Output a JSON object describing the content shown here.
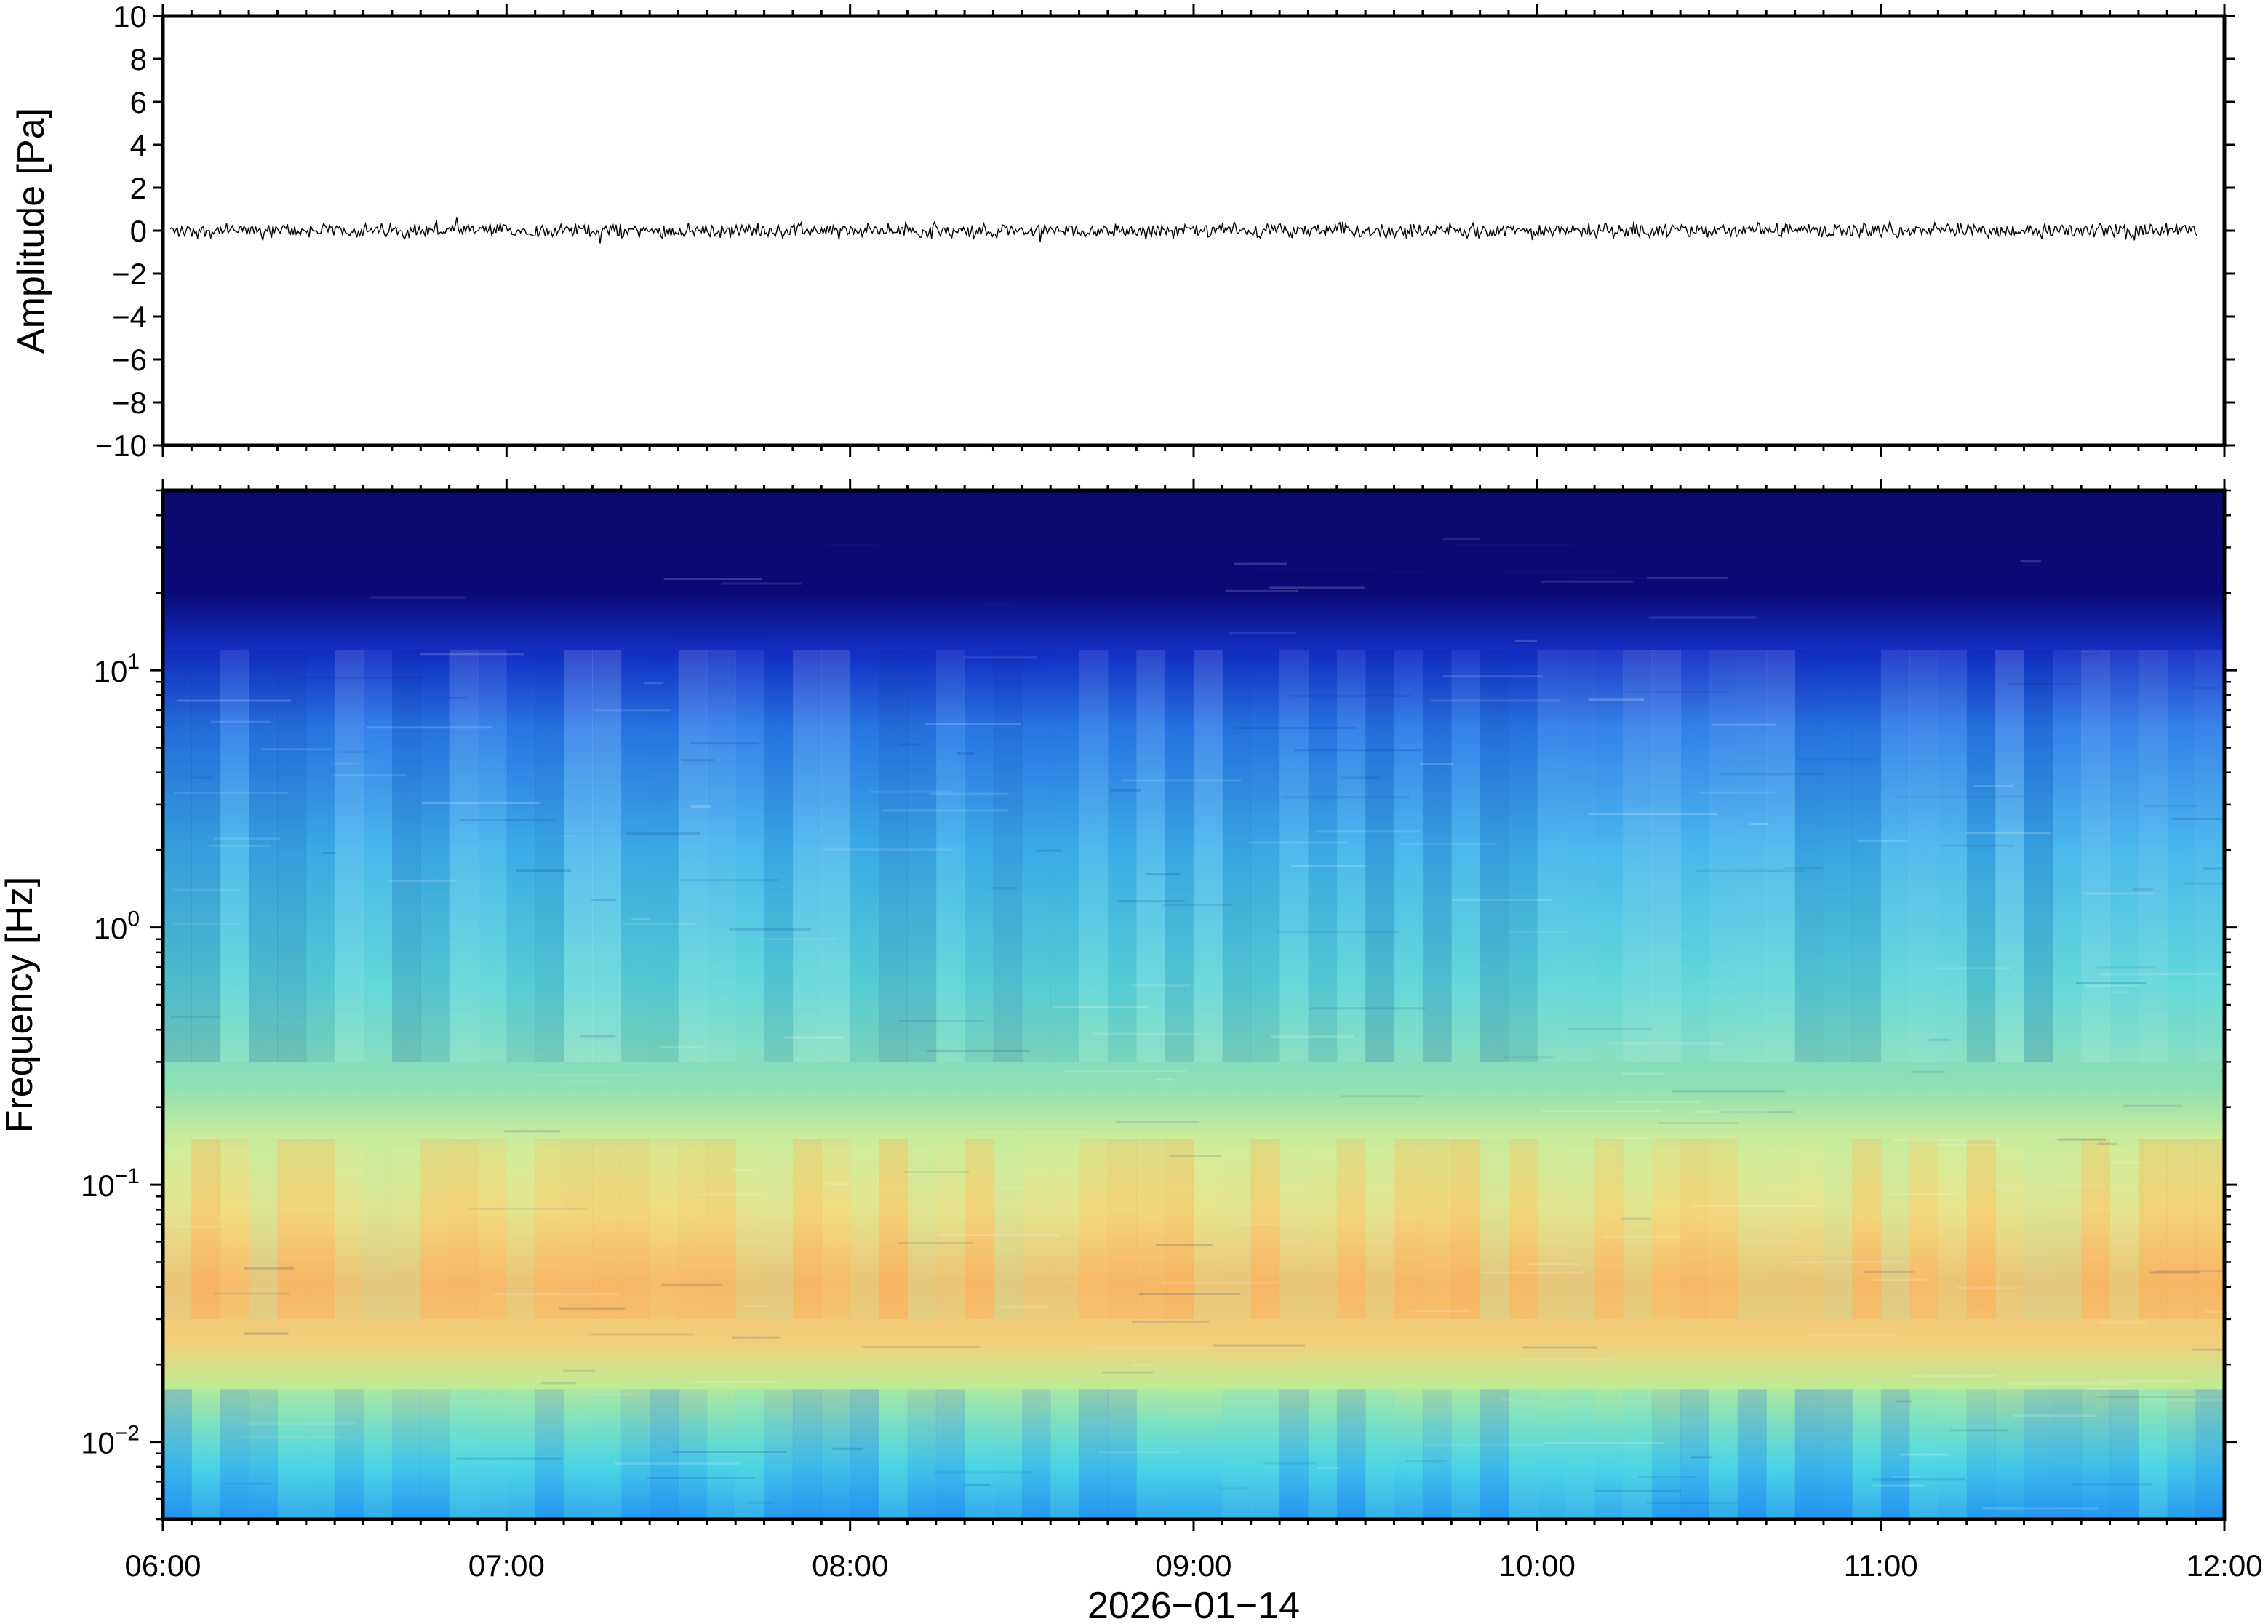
{
  "chart_data": [
    {
      "type": "line",
      "panel": "waveform",
      "ylabel": "Amplitude [Pa]",
      "ylim": [
        -10,
        10
      ],
      "yticks": [
        10,
        8,
        6,
        4,
        2,
        0,
        -2,
        -4,
        -6,
        -8,
        -10
      ],
      "ytick_labels": [
        "10",
        "8",
        "6",
        "4",
        "2",
        "0",
        "−2",
        "−4",
        "−6",
        "−8",
        "−10"
      ],
      "x_range_hours": [
        6,
        12
      ],
      "trace_amplitude_pa": 0.4,
      "trace_color": "#000000"
    },
    {
      "type": "heatmap",
      "panel": "spectrogram",
      "ylabel": "Frequency [Hz]",
      "yscale": "log",
      "ylim_hz": [
        0.005,
        50
      ],
      "yticks_hz": [
        10,
        1,
        0.1,
        0.01
      ],
      "ytick_labels": [
        {
          "base": "10",
          "exp": "1"
        },
        {
          "base": "10",
          "exp": "0"
        },
        {
          "base": "10",
          "exp": "−1"
        },
        {
          "base": "10",
          "exp": "−2"
        }
      ],
      "xlabel": "2026−01−14",
      "xticks": [
        "06:00",
        "07:00",
        "08:00",
        "09:00",
        "10:00",
        "11:00",
        "12:00"
      ],
      "x_range_hours": [
        6,
        12
      ],
      "colormap": [
        "#00007f",
        "#0000ff",
        "#007fff",
        "#00ffff",
        "#7fff7f",
        "#ffff00",
        "#ff7f00"
      ],
      "peak_band_hz": [
        0.03,
        0.15
      ],
      "quiet_band_hz": [
        20,
        50
      ]
    }
  ]
}
